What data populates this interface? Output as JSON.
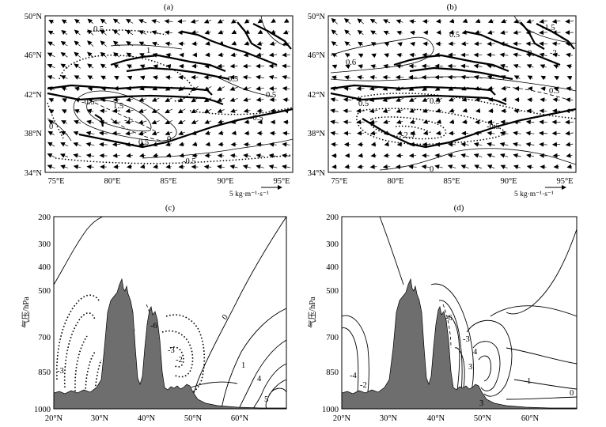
{
  "chart_data": [
    {
      "type": "map",
      "panel_label": "(a)",
      "lat_ticks": [
        "34°N",
        "38°N",
        "42°N",
        "46°N",
        "50°N"
      ],
      "lon_ticks": [
        "75°E",
        "80°E",
        "85°E",
        "90°E",
        "95°E"
      ],
      "lon_range": [
        74,
        96
      ],
      "lat_range": [
        34,
        50
      ],
      "vector_legend": "5 kg·m⁻¹·s⁻¹",
      "contour_labels": [
        "0.5",
        "1",
        "0.5",
        "1.5",
        "0.5",
        "0",
        "-0.5",
        "-0.5",
        "-0.5",
        "0",
        "-1",
        "0.5"
      ]
    },
    {
      "type": "map",
      "panel_label": "(b)",
      "lat_ticks": [
        "34°N",
        "38°N",
        "42°N",
        "46°N",
        "50°N"
      ],
      "lon_ticks": [
        "75°E",
        "80°E",
        "85°E",
        "90°E",
        "95°E"
      ],
      "lon_range": [
        74,
        96
      ],
      "lat_range": [
        34,
        50
      ],
      "vector_legend": "5 kg·m⁻¹·s⁻¹",
      "contour_labels": [
        "-1.5",
        "0.5",
        "0.6",
        "-2",
        "0",
        "0.5",
        "0.5",
        "-2.5",
        "-0.5",
        "0",
        "0.5"
      ]
    },
    {
      "type": "cross-section",
      "panel_label": "(c)",
      "ylabel": "气压/hPa",
      "y_ticks": [
        "200",
        "300",
        "400",
        "500",
        "700",
        "850",
        "1000"
      ],
      "x_ticks": [
        "20°N",
        "30°N",
        "40°N",
        "50°N",
        "60°N"
      ],
      "x_range": [
        20,
        70
      ],
      "y_range": [
        200,
        1000
      ],
      "contour_labels": [
        "0",
        "-3",
        "-2",
        "-3",
        "1",
        "4",
        "5",
        "-6"
      ]
    },
    {
      "type": "cross-section",
      "panel_label": "(d)",
      "ylabel": "气压/hPa",
      "y_ticks": [
        "200",
        "300",
        "400",
        "500",
        "700",
        "850",
        "1000"
      ],
      "x_ticks": [
        "20°N",
        "30°N",
        "40°N",
        "50°N",
        "60°N"
      ],
      "x_range": [
        20,
        70
      ],
      "y_range": [
        200,
        1000
      ],
      "contour_labels": [
        "-4",
        "-2",
        "-6",
        "-3",
        "4",
        "3",
        "1",
        "0",
        "3"
      ]
    }
  ],
  "colors": {
    "terrain": "#6e6e6e",
    "line": "#000000"
  }
}
